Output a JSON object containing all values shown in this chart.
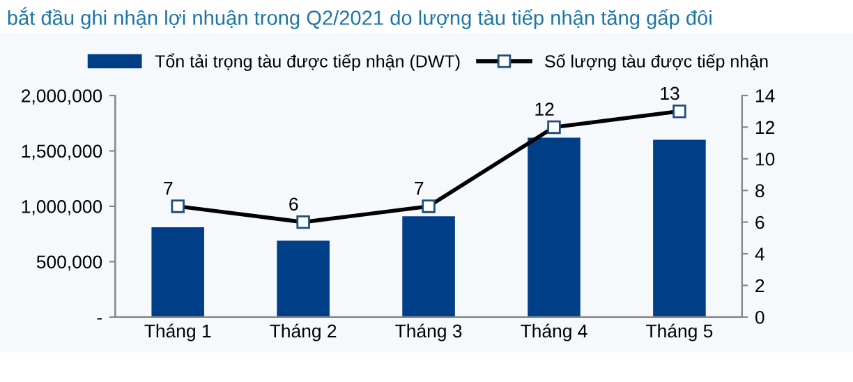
{
  "chart_data": {
    "type": "bar",
    "title": "bắt đầu ghi nhận lợi nhuận trong Q2/2021 do lượng tàu tiếp nhận tăng gấp đôi",
    "categories": [
      "Tháng 1",
      "Tháng 2",
      "Tháng 3",
      "Tháng 4",
      "Tháng 5"
    ],
    "series": [
      {
        "name": "Tổn tải trọng tàu được tiếp nhận (DWT)",
        "color": "#003f87",
        "values": [
          810000,
          690000,
          910000,
          1620000,
          1600000
        ]
      },
      {
        "name": "Số lượng tàu được tiếp nhận",
        "type": "line",
        "axis": "y2",
        "color": "#000000",
        "marker": "square",
        "data_labels": true,
        "values": [
          7,
          6,
          7,
          12,
          13
        ]
      }
    ],
    "ylim": [
      0,
      2000000
    ],
    "yticks": [
      {
        "value": 0,
        "label": "-"
      },
      {
        "value": 500000,
        "label": "500,000"
      },
      {
        "value": 1000000,
        "label": "1,000,000"
      },
      {
        "value": 1500000,
        "label": "1,500,000"
      },
      {
        "value": 2000000,
        "label": "2,000,000"
      }
    ],
    "y2lim": [
      0,
      14
    ],
    "y2ticks": [
      0,
      2,
      4,
      6,
      8,
      10,
      12,
      14
    ],
    "grid": false,
    "legend": "top"
  }
}
